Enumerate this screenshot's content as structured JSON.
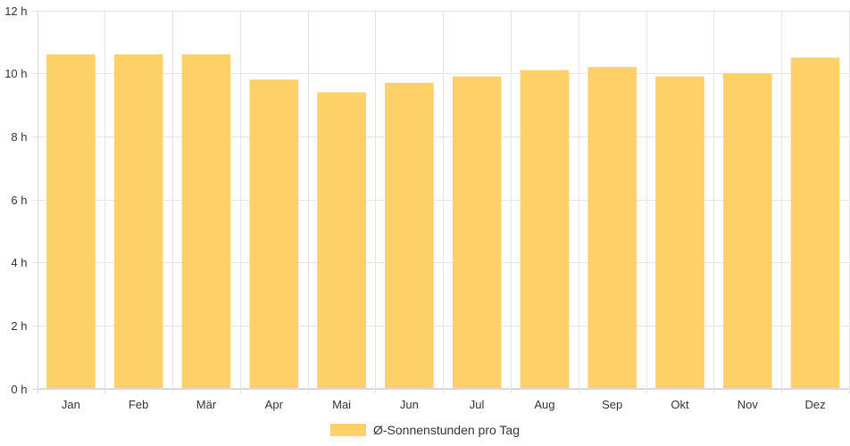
{
  "chart_data": {
    "type": "bar",
    "categories": [
      "Jan",
      "Feb",
      "Mär",
      "Apr",
      "Mai",
      "Jun",
      "Jul",
      "Aug",
      "Sep",
      "Okt",
      "Nov",
      "Dez"
    ],
    "series": [
      {
        "name": "Ø-Sonnenstunden pro Tag",
        "values": [
          10.6,
          10.6,
          10.6,
          9.8,
          9.4,
          9.7,
          9.9,
          10.1,
          10.2,
          9.9,
          10.0,
          10.5
        ],
        "color": "#fdd068"
      }
    ],
    "title": "",
    "xlabel": "",
    "ylabel": "",
    "ylim": [
      0,
      12
    ],
    "yticks": [
      {
        "value": 0,
        "label": "0 h"
      },
      {
        "value": 2,
        "label": "2 h"
      },
      {
        "value": 4,
        "label": "4 h"
      },
      {
        "value": 6,
        "label": "6 h"
      },
      {
        "value": 8,
        "label": "8 h"
      },
      {
        "value": 10,
        "label": "10 h"
      },
      {
        "value": 12,
        "label": "12 h"
      }
    ],
    "grid": true,
    "legend_position": "bottom-center",
    "colors": {
      "grid": "#e5e5e5",
      "axis": "#d9d9d9",
      "text": "#333333"
    }
  }
}
